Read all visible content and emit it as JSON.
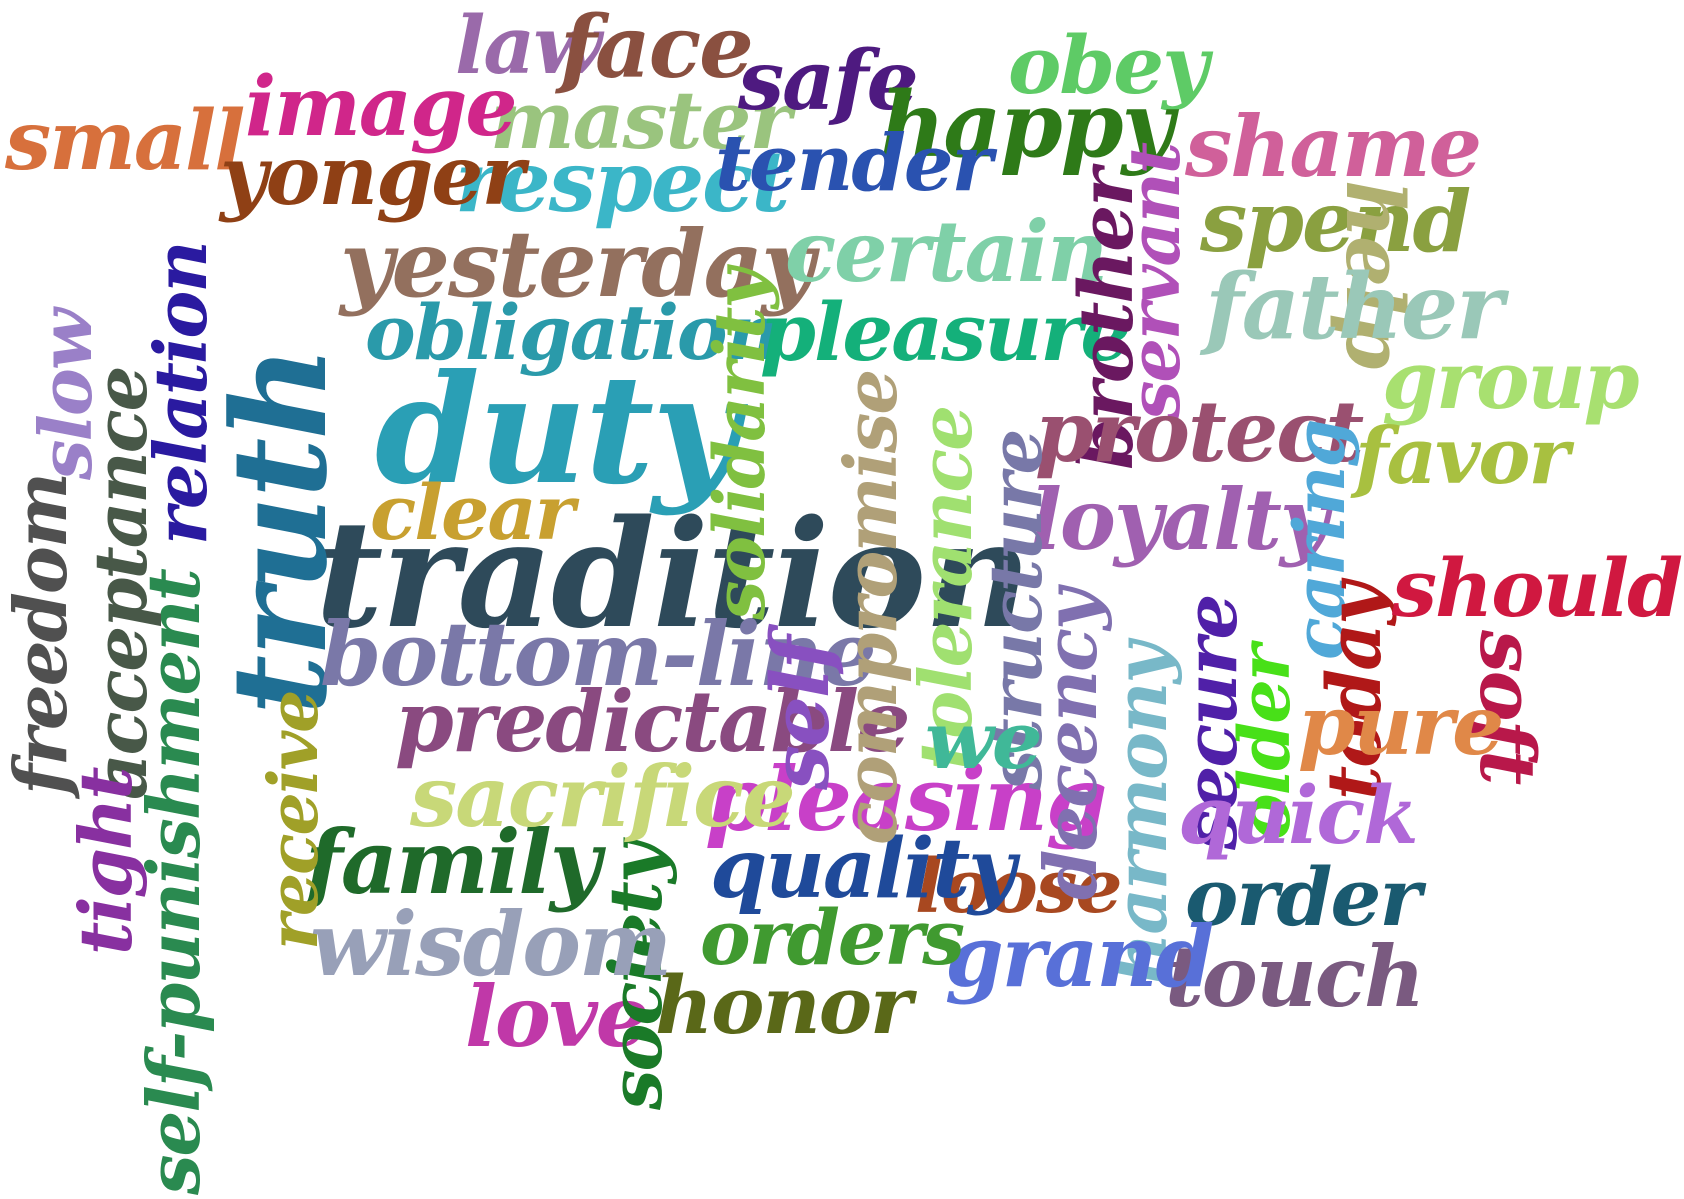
{
  "words": [
    {
      "text": "tradition",
      "color": "#2e4a5a"
    },
    {
      "text": "duty",
      "color": "#2a9fb5"
    },
    {
      "text": "truth",
      "color": "#1f6f94"
    },
    {
      "text": "yesterday",
      "color": "#93705e"
    },
    {
      "text": "obligation",
      "color": "#2a9aaa"
    },
    {
      "text": "pleasure",
      "color": "#14b07a"
    },
    {
      "text": "respect",
      "color": "#3bb6c8"
    },
    {
      "text": "master",
      "color": "#9ac47e"
    },
    {
      "text": "image",
      "color": "#d0268a"
    },
    {
      "text": "small",
      "color": "#d7703c"
    },
    {
      "text": "yonger",
      "color": "#8f4015"
    },
    {
      "text": "law",
      "color": "#9a6aaa"
    },
    {
      "text": "face",
      "color": "#8a5040"
    },
    {
      "text": "safe",
      "color": "#4e1a80"
    },
    {
      "text": "obey",
      "color": "#5ecb66"
    },
    {
      "text": "happy",
      "color": "#2e7a18"
    },
    {
      "text": "shame",
      "color": "#d0609a"
    },
    {
      "text": "tender",
      "color": "#2a52b0"
    },
    {
      "text": "certain",
      "color": "#7fd0a8"
    },
    {
      "text": "brother",
      "color": "#6a1860"
    },
    {
      "text": "servant",
      "color": "#b050b8"
    },
    {
      "text": "spend",
      "color": "#8aa040"
    },
    {
      "text": "help",
      "color": "#b0b070"
    },
    {
      "text": "father",
      "color": "#9ac8b8"
    },
    {
      "text": "group",
      "color": "#a8e070"
    },
    {
      "text": "favor",
      "color": "#a8c040"
    },
    {
      "text": "protect",
      "color": "#9a5070"
    },
    {
      "text": "loyalty",
      "color": "#a060b0"
    },
    {
      "text": "caring",
      "color": "#50a8d8"
    },
    {
      "text": "today",
      "color": "#b01818"
    },
    {
      "text": "should",
      "color": "#d01840"
    },
    {
      "text": "soft",
      "color": "#b8184a"
    },
    {
      "text": "pure",
      "color": "#e08848"
    },
    {
      "text": "older",
      "color": "#48e018"
    },
    {
      "text": "secure",
      "color": "#5020a8"
    },
    {
      "text": "quick",
      "color": "#b068d8"
    },
    {
      "text": "order",
      "color": "#1a5a70"
    },
    {
      "text": "touch",
      "color": "#7a5a80"
    },
    {
      "text": "harmony",
      "color": "#78b8c8"
    },
    {
      "text": "grand",
      "color": "#5870d8"
    },
    {
      "text": "loose",
      "color": "#a84820"
    },
    {
      "text": "orders",
      "color": "#409a30"
    },
    {
      "text": "honor",
      "color": "#5a6818"
    },
    {
      "text": "love",
      "color": "#c038a8"
    },
    {
      "text": "society",
      "color": "#1a7a28"
    },
    {
      "text": "wisdom",
      "color": "#98a0b8"
    },
    {
      "text": "family",
      "color": "#1f6a2a"
    },
    {
      "text": "quality",
      "color": "#1f4a9a"
    },
    {
      "text": "pleasing",
      "color": "#c840c8"
    },
    {
      "text": "sacrifice",
      "color": "#c8d878"
    },
    {
      "text": "predictable",
      "color": "#8a4a80"
    },
    {
      "text": "bottom-line",
      "color": "#7a78a8"
    },
    {
      "text": "self",
      "color": "#8850c0"
    },
    {
      "text": "compromise",
      "color": "#b0a078"
    },
    {
      "text": "tolerance",
      "color": "#a0e070"
    },
    {
      "text": "structure",
      "color": "#7878a8"
    },
    {
      "text": "decency",
      "color": "#8070b0"
    },
    {
      "text": "we",
      "color": "#40b898"
    },
    {
      "text": "solidarity",
      "color": "#80c040"
    },
    {
      "text": "clear",
      "color": "#c8a030"
    },
    {
      "text": "receive",
      "color": "#a0a028"
    },
    {
      "text": "relation",
      "color": "#2a1aa0"
    },
    {
      "text": "punishment",
      "color": "#2a8a58"
    },
    {
      "text": "acceptance",
      "color": "#485848"
    },
    {
      "text": "slow",
      "color": "#9a80c8"
    },
    {
      "text": "freedom",
      "color": "#505050"
    },
    {
      "text": "tight",
      "color": "#8830a0"
    },
    {
      "text": "self-punishment",
      "color": "#2a8a50"
    }
  ]
}
